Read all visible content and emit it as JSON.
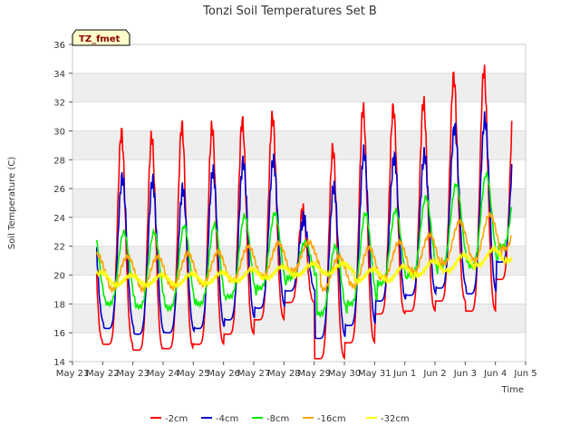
{
  "chart_data": {
    "type": "line",
    "title": "Tonzi Soil Temperatures Set B",
    "xlabel": "Time",
    "ylabel": "Soil Temperature (C)",
    "badge": "TZ_fmet",
    "ylim": [
      14,
      36
    ],
    "yticks": [
      "14",
      "16",
      "18",
      "20",
      "22",
      "24",
      "26",
      "28",
      "30",
      "32",
      "34",
      "36"
    ],
    "xlim": [
      0,
      15
    ],
    "xticks": [
      "May 21",
      "May 22",
      "May 23",
      "May 24",
      "May 25",
      "May 26",
      "May 27",
      "May 28",
      "May 29",
      "May 30",
      "May 31",
      "Jun 1",
      "Jun 2",
      "Jun 3",
      "Jun 4",
      "Jun 5"
    ],
    "grid": "y-bands",
    "legend": "bottom",
    "series": [
      {
        "name": "-2cm",
        "color": "#ff0000",
        "daily_min": [
          15.4,
          15.2,
          14.8,
          14.9,
          15.2,
          15.9,
          16.9,
          18.1,
          14.2,
          15.3,
          17.3,
          17.5,
          18.2,
          17.5,
          19.7
        ],
        "daily_max": [
          28.0,
          29.9,
          29.6,
          30.4,
          30.3,
          30.7,
          31.0,
          24.5,
          28.8,
          31.6,
          31.6,
          32.0,
          33.8,
          34.2,
          32.5
        ]
      },
      {
        "name": "-4cm",
        "color": "#0000cc",
        "daily_min": [
          16.6,
          16.3,
          15.9,
          16.0,
          16.3,
          16.9,
          17.7,
          18.9,
          15.6,
          16.5,
          18.2,
          18.6,
          19.1,
          18.7,
          20.9
        ],
        "daily_max": [
          25.5,
          26.8,
          26.5,
          26.0,
          27.2,
          27.8,
          28.0,
          23.9,
          26.2,
          28.5,
          28.2,
          28.3,
          30.3,
          30.8,
          29.5
        ]
      },
      {
        "name": "-8cm",
        "color": "#00ee00",
        "daily_min": [
          18.2,
          18.0,
          17.8,
          17.7,
          18.0,
          18.5,
          19.1,
          19.8,
          17.3,
          18.0,
          19.4,
          20.0,
          20.7,
          20.6,
          22.0
        ],
        "daily_max": [
          23.1,
          23.0,
          23.0,
          23.4,
          23.5,
          24.1,
          24.3,
          22.3,
          22.0,
          24.3,
          24.5,
          25.4,
          26.3,
          27.0,
          26.2
        ]
      },
      {
        "name": "-16cm",
        "color": "#ffa500",
        "daily_min": [
          19.2,
          19.0,
          19.0,
          19.1,
          19.3,
          19.6,
          19.9,
          20.3,
          19.0,
          19.2,
          19.8,
          20.2,
          20.8,
          21.0,
          21.8
        ],
        "daily_max": [
          21.4,
          21.3,
          21.3,
          21.5,
          21.6,
          22.0,
          22.2,
          22.3,
          21.3,
          21.9,
          22.3,
          22.8,
          23.7,
          24.2,
          24.0
        ]
      },
      {
        "name": "-32cm",
        "color": "#ffff00",
        "daily_min": [
          19.3,
          19.3,
          19.3,
          19.3,
          19.4,
          19.6,
          19.8,
          20.0,
          20.1,
          19.6,
          19.6,
          20.0,
          20.3,
          20.7,
          21.0
        ],
        "daily_max": [
          20.2,
          20.0,
          20.0,
          20.1,
          20.2,
          20.4,
          20.6,
          20.8,
          20.8,
          20.4,
          20.6,
          21.0,
          21.4,
          21.8,
          21.9
        ]
      }
    ]
  }
}
